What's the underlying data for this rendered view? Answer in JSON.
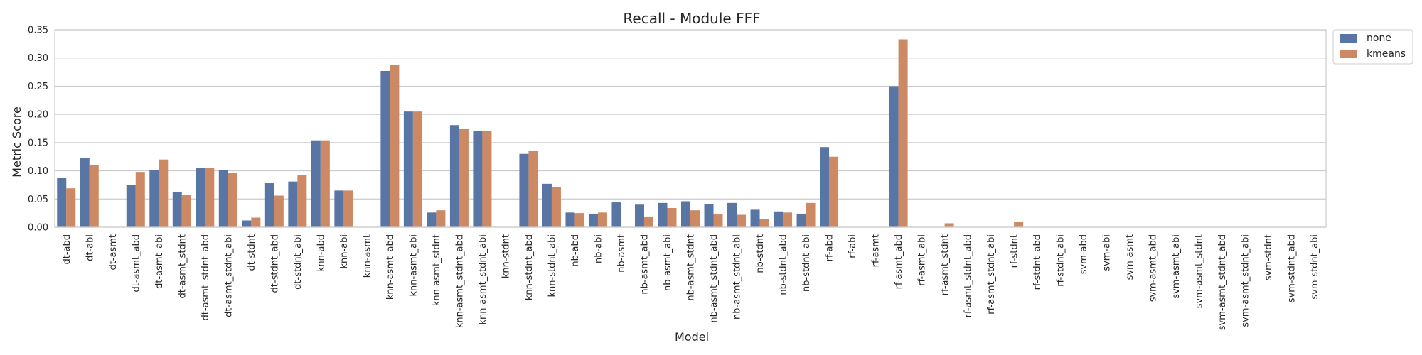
{
  "chart_data": {
    "type": "bar",
    "title": "Recall - Module FFF",
    "xlabel": "Model",
    "ylabel": "Metric Score",
    "ylim": [
      0,
      0.35
    ],
    "yticks": [
      "0.00",
      "0.05",
      "0.10",
      "0.15",
      "0.20",
      "0.25",
      "0.30",
      "0.35"
    ],
    "grid": true,
    "legend_position": "outside-top-right",
    "categories": [
      "dt-abd",
      "dt-abi",
      "dt-asmt",
      "dt-asmt_abd",
      "dt-asmt_abi",
      "dt-asmt_stdnt",
      "dt-asmt_stdnt_abd",
      "dt-asmt_stdnt_abi",
      "dt-stdnt",
      "dt-stdnt_abd",
      "dt-stdnt_abi",
      "knn-abd",
      "knn-abi",
      "knn-asmt",
      "knn-asmt_abd",
      "knn-asmt_abi",
      "knn-asmt_stdnt",
      "knn-asmt_stdnt_abd",
      "knn-asmt_stdnt_abi",
      "knn-stdnt",
      "knn-stdnt_abd",
      "knn-stdnt_abi",
      "nb-abd",
      "nb-abi",
      "nb-asmt",
      "nb-asmt_abd",
      "nb-asmt_abi",
      "nb-asmt_stdnt",
      "nb-asmt_stdnt_abd",
      "nb-asmt_stdnt_abi",
      "nb-stdnt",
      "nb-stdnt_abd",
      "nb-stdnt_abi",
      "rf-abd",
      "rf-abi",
      "rf-asmt",
      "rf-asmt_abd",
      "rf-asmt_abi",
      "rf-asmt_stdnt",
      "rf-asmt_stdnt_abd",
      "rf-asmt_stdnt_abi",
      "rf-stdnt",
      "rf-stdnt_abd",
      "rf-stdnt_abi",
      "svm-abd",
      "svm-abi",
      "svm-asmt",
      "svm-asmt_abd",
      "svm-asmt_abi",
      "svm-asmt_stdnt",
      "svm-asmt_stdnt_abd",
      "svm-asmt_stdnt_abi",
      "svm-stdnt",
      "svm-stdnt_abd",
      "svm-stdnt_abi"
    ],
    "series": [
      {
        "name": "none",
        "color": "#5875a4",
        "values": [
          0.087,
          0.123,
          0,
          0.075,
          0.101,
          0.063,
          0.105,
          0.102,
          0.012,
          0.078,
          0.081,
          0.154,
          0.065,
          0,
          0.277,
          0.205,
          0.026,
          0.181,
          0.171,
          0,
          0.13,
          0.077,
          0.026,
          0.024,
          0.044,
          0.04,
          0.043,
          0.046,
          0.041,
          0.043,
          0.031,
          0.028,
          0.024,
          0.142,
          0,
          0,
          0.25,
          0,
          0,
          0,
          0,
          0,
          0,
          0,
          0,
          0,
          0,
          0,
          0,
          0,
          0,
          0,
          0,
          0,
          0
        ]
      },
      {
        "name": "kmeans",
        "color": "#cc8963",
        "values": [
          0.069,
          0.11,
          0,
          0.098,
          0.12,
          0.057,
          0.105,
          0.097,
          0.017,
          0.056,
          0.093,
          0.154,
          0.065,
          0,
          0.288,
          0.205,
          0.03,
          0.174,
          0.171,
          0,
          0.136,
          0.071,
          0.025,
          0.026,
          0,
          0.019,
          0.034,
          0.03,
          0.023,
          0.022,
          0.015,
          0.026,
          0.043,
          0.125,
          0,
          0,
          0.333,
          0,
          0.007,
          0,
          0,
          0.009,
          0,
          0,
          0,
          0,
          0,
          0,
          0,
          0,
          0,
          0,
          0,
          0,
          0
        ]
      }
    ]
  }
}
